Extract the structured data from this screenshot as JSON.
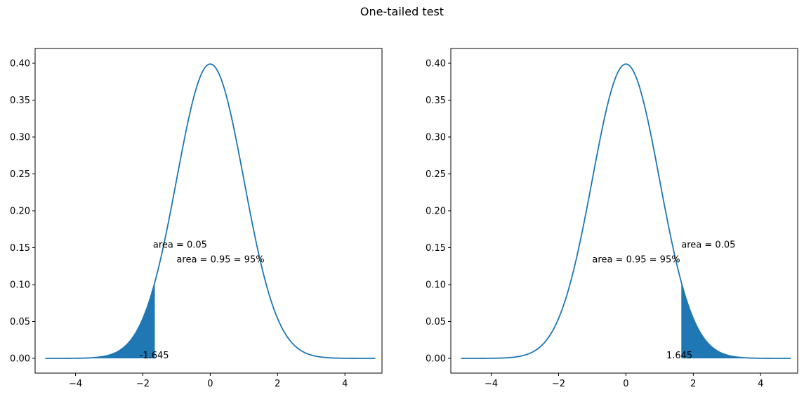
{
  "title": "One-tailed test",
  "colors": {
    "curve": "#1f77b4",
    "fill": "#1f77b4",
    "axis": "#000000"
  },
  "chart_data": [
    {
      "type": "area",
      "curve": "standard normal pdf",
      "xlim": [
        -5.2,
        5.1
      ],
      "ylim": [
        -0.02,
        0.42
      ],
      "x_range": [
        -4.9,
        4.9
      ],
      "xticks": [
        -4,
        -2,
        0,
        2,
        4
      ],
      "xtick_labels": [
        "−4",
        "−2",
        "0",
        "2",
        "4"
      ],
      "yticks": [
        0.0,
        0.05,
        0.1,
        0.15,
        0.2,
        0.25,
        0.3,
        0.35,
        0.4
      ],
      "ytick_labels": [
        "0.00",
        "0.05",
        "0.10",
        "0.15",
        "0.20",
        "0.25",
        "0.30",
        "0.35",
        "0.40"
      ],
      "shaded": {
        "from": -4.9,
        "to": -1.645
      },
      "annotations": [
        {
          "text": "area = 0.05",
          "x": -1.7,
          "y": 0.15
        },
        {
          "text": "area = 0.95 = 95%",
          "x": -1.0,
          "y": 0.13
        },
        {
          "text": "-1.645",
          "x": -2.1,
          "y": 0.0
        }
      ]
    },
    {
      "type": "area",
      "curve": "standard normal pdf",
      "xlim": [
        -5.2,
        5.1
      ],
      "ylim": [
        -0.02,
        0.42
      ],
      "x_range": [
        -4.9,
        4.9
      ],
      "xticks": [
        -4,
        -2,
        0,
        2,
        4
      ],
      "xtick_labels": [
        "−4",
        "−2",
        "0",
        "2",
        "4"
      ],
      "yticks": [
        0.0,
        0.05,
        0.1,
        0.15,
        0.2,
        0.25,
        0.3,
        0.35,
        0.4
      ],
      "ytick_labels": [
        "0.00",
        "0.05",
        "0.10",
        "0.15",
        "0.20",
        "0.25",
        "0.30",
        "0.35",
        "0.40"
      ],
      "shaded": {
        "from": 1.645,
        "to": 4.9
      },
      "annotations": [
        {
          "text": "area = 0.05",
          "x": 1.645,
          "y": 0.15
        },
        {
          "text": "area = 0.95 = 95%",
          "x": -1.0,
          "y": 0.13
        },
        {
          "text": "1.645",
          "x": 1.2,
          "y": 0.0
        }
      ]
    }
  ]
}
